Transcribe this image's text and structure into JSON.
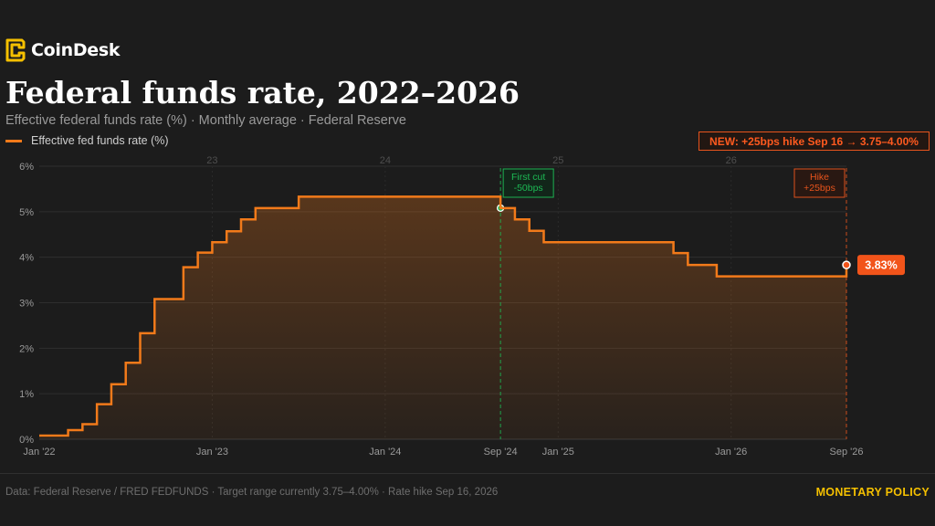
{
  "brand": {
    "name": "CoinDesk",
    "logo_icon": "coindesk-logo-icon",
    "accent": "#f5c000"
  },
  "header": {
    "title": "Federal funds rate, 2022–2026",
    "subtitle": "Effective federal funds rate (%) · Monthly average · Federal Reserve"
  },
  "news_badge": "NEW: +25bps hike Sep 16 → 3.75–4.00%",
  "footer": {
    "source": "Data: Federal Reserve / FRED FEDFUNDS · Target range currently 3.75–4.00% · Rate hike Sep 16, 2026",
    "tag": "MONETARY POLICY"
  },
  "chart_data": {
    "type": "line",
    "step": true,
    "title": "Federal funds rate, 2022–2026",
    "ylabel": "",
    "xlabel": "",
    "ylim": [
      0,
      6
    ],
    "y_ticks": [
      0,
      1,
      2,
      3,
      4,
      5,
      6
    ],
    "y_tick_labels": [
      "0%",
      "1%",
      "2%",
      "3%",
      "4%",
      "5%",
      "6%"
    ],
    "x_range": [
      "2022-01",
      "2026-09"
    ],
    "x_ticks": [
      {
        "x": "2022-01",
        "label": "Jan '22"
      },
      {
        "x": "2023-01",
        "label": "Jan '23"
      },
      {
        "x": "2024-01",
        "label": "Jan '24"
      },
      {
        "x": "2024-09",
        "label": "Sep '24"
      },
      {
        "x": "2025-01",
        "label": "Jan '25"
      },
      {
        "x": "2026-01",
        "label": "Jan '26"
      },
      {
        "x": "2026-09",
        "label": "Sep '26"
      }
    ],
    "year_labels": [
      {
        "x": "2023-01",
        "label": "23"
      },
      {
        "x": "2024-01",
        "label": "24"
      },
      {
        "x": "2025-01",
        "label": "25"
      },
      {
        "x": "2026-01",
        "label": "26"
      }
    ],
    "grid": true,
    "legend_position": "top-left",
    "line_color": "#f27a1a",
    "series": [
      {
        "name": "Effective fed funds rate (%)",
        "x": [
          "2022-01",
          "2022-02",
          "2022-03",
          "2022-04",
          "2022-05",
          "2022-06",
          "2022-07",
          "2022-08",
          "2022-09",
          "2022-10",
          "2022-11",
          "2022-12",
          "2023-01",
          "2023-02",
          "2023-03",
          "2023-04",
          "2023-05",
          "2023-06",
          "2023-07",
          "2023-08",
          "2023-09",
          "2023-10",
          "2023-11",
          "2023-12",
          "2024-01",
          "2024-02",
          "2024-03",
          "2024-04",
          "2024-05",
          "2024-06",
          "2024-07",
          "2024-08",
          "2024-09",
          "2024-10",
          "2024-11",
          "2024-12",
          "2025-01",
          "2025-02",
          "2025-03",
          "2025-04",
          "2025-05",
          "2025-06",
          "2025-07",
          "2025-08",
          "2025-09",
          "2025-10",
          "2025-11",
          "2025-12",
          "2026-01",
          "2026-02",
          "2026-03",
          "2026-04",
          "2026-05",
          "2026-06",
          "2026-07",
          "2026-08",
          "2026-09"
        ],
        "values": [
          0.08,
          0.08,
          0.2,
          0.33,
          0.77,
          1.21,
          1.68,
          2.33,
          3.08,
          3.08,
          3.78,
          4.1,
          4.33,
          4.57,
          4.83,
          5.08,
          5.08,
          5.08,
          5.33,
          5.33,
          5.33,
          5.33,
          5.33,
          5.33,
          5.33,
          5.33,
          5.33,
          5.33,
          5.33,
          5.33,
          5.33,
          5.33,
          5.08,
          4.83,
          4.58,
          4.33,
          4.33,
          4.33,
          4.33,
          4.33,
          4.33,
          4.33,
          4.33,
          4.33,
          4.09,
          3.83,
          3.83,
          3.58,
          3.58,
          3.58,
          3.58,
          3.58,
          3.58,
          3.58,
          3.58,
          3.58,
          3.83
        ]
      }
    ],
    "annotations": [
      {
        "x": "2024-09",
        "lines": [
          "First cut",
          "-50bps"
        ],
        "color": "#1db954",
        "marker_value": 5.08
      },
      {
        "x": "2026-09",
        "lines": [
          "Hike",
          "+25bps"
        ],
        "color": "#e8541c"
      }
    ],
    "end_label": {
      "x": "2026-09",
      "value": 3.83,
      "text": "3.83%",
      "color": "#f2541a"
    }
  }
}
